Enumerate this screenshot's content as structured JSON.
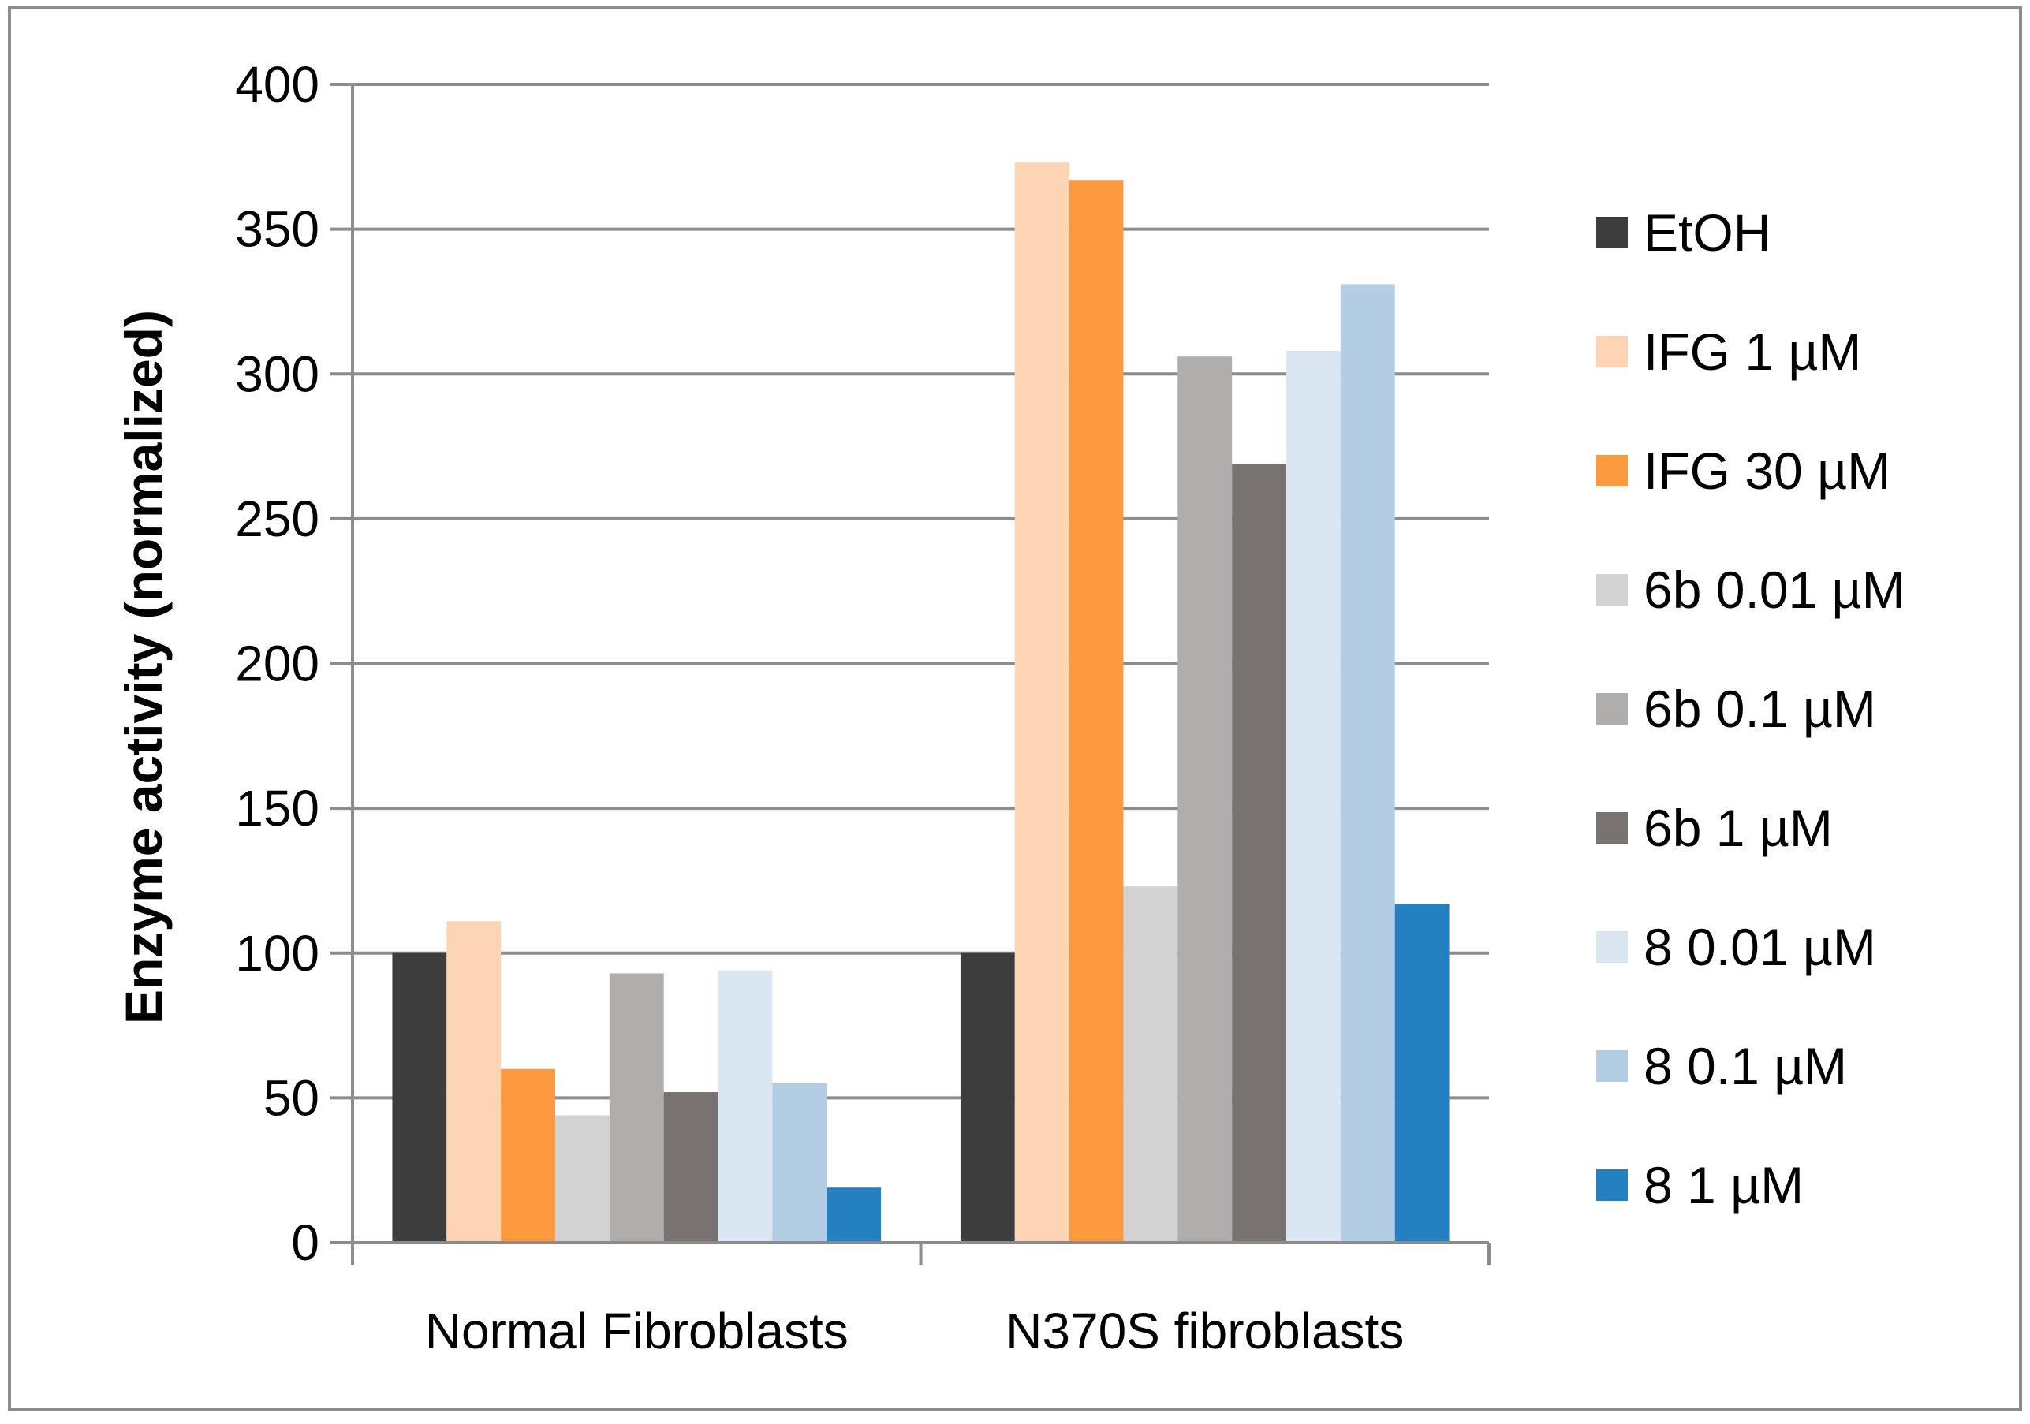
{
  "chart_data": {
    "type": "bar",
    "title": "",
    "xlabel": "",
    "ylabel": "Enzyme activity (normalized)",
    "ylim": [
      0,
      400
    ],
    "yticks": [
      0,
      50,
      100,
      150,
      200,
      250,
      300,
      350,
      400
    ],
    "grid": true,
    "legend_position": "right",
    "categories": [
      "Normal Fibroblasts",
      "N370S fibroblasts"
    ],
    "series": [
      {
        "name": "EtOH",
        "color": "#3d3d3d",
        "values": [
          100,
          100
        ]
      },
      {
        "name": "IFG 1 µM",
        "color": "#fdd5b4",
        "values": [
          111,
          373
        ]
      },
      {
        "name": "IFG 30 µM",
        "color": "#fd9a40",
        "values": [
          60,
          367
        ]
      },
      {
        "name": "6b 0.01 µM",
        "color": "#d2d2d2",
        "values": [
          44,
          123
        ]
      },
      {
        "name": "6b 0.1 µM",
        "color": "#b0aeac",
        "values": [
          93,
          306
        ]
      },
      {
        "name": "6b 1 µM",
        "color": "#787370",
        "values": [
          52,
          269
        ]
      },
      {
        "name": "8 0.01 µM",
        "color": "#dae6f2",
        "values": [
          94,
          308
        ]
      },
      {
        "name": "8 0.1 µM",
        "color": "#b3cde5",
        "values": [
          55,
          331
        ]
      },
      {
        "name": "8 1 µM",
        "color": "#2580c1",
        "values": [
          19,
          117
        ]
      }
    ]
  }
}
